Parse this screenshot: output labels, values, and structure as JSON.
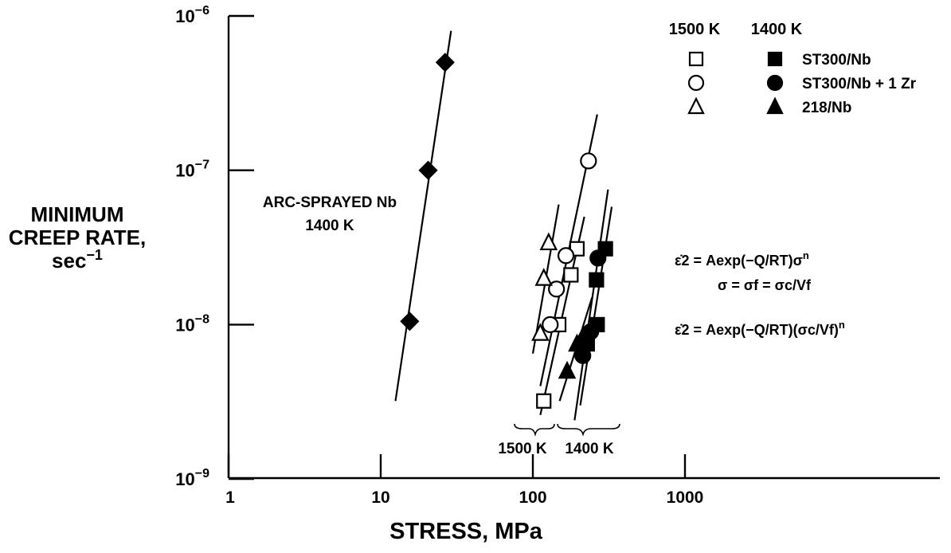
{
  "chart_data": {
    "type": "scatter",
    "x_scale": "log",
    "y_scale": "log",
    "xlim": [
      1,
      10000
    ],
    "ylim": [
      1e-09,
      1e-06
    ],
    "xlabel": "STRESS, MPa",
    "ylabel_lines": [
      "MINIMUM",
      "CREEP RATE,",
      "sec"
    ],
    "ylabel_exponent": "−1",
    "x_ticks": [
      {
        "value": 1,
        "label": "1"
      },
      {
        "value": 10,
        "label": "10"
      },
      {
        "value": 100,
        "label": "100"
      },
      {
        "value": 1000,
        "label": "1000"
      }
    ],
    "y_ticks": [
      {
        "value": 1e-06,
        "base": "10",
        "exp": "−6"
      },
      {
        "value": 1e-07,
        "base": "10",
        "exp": "−7"
      },
      {
        "value": 1e-08,
        "base": "10",
        "exp": "−8"
      },
      {
        "value": 1e-09,
        "base": "10",
        "exp": "−9"
      }
    ],
    "legend": {
      "placement": "top-right",
      "headers": [
        "1500 K",
        "1400 K"
      ],
      "rows": [
        {
          "label": "ST300/Nb",
          "marker": "square"
        },
        {
          "label": "ST300/Nb + 1 Zr",
          "marker": "circle"
        },
        {
          "label": "218/Nb",
          "marker": "triangle"
        }
      ]
    },
    "series": [
      {
        "name": "ARC-SPRAYED Nb 1400 K",
        "marker": "diamond",
        "filled": true,
        "points": [
          [
            15.5,
            1.05e-08
          ],
          [
            20.5,
            1e-07
          ],
          [
            26.5,
            5e-07
          ]
        ],
        "fit": [
          [
            12.5,
            3.2e-09
          ],
          [
            29.0,
            8e-07
          ]
        ]
      },
      {
        "name": "ST300/Nb",
        "temperature": "1500 K",
        "marker": "square",
        "filled": false,
        "points": [
          [
            118,
            3.2e-09
          ],
          [
            148,
            1e-08
          ],
          [
            178,
            2.1e-08
          ],
          [
            195,
            3.1e-08
          ]
        ],
        "fit": [
          [
            112,
            2.6e-09
          ],
          [
            218,
            5e-08
          ]
        ]
      },
      {
        "name": "ST300/Nb + 1 Zr",
        "temperature": "1500 K",
        "marker": "circle",
        "filled": false,
        "points": [
          [
            130,
            1e-08
          ],
          [
            143,
            1.7e-08
          ],
          [
            165,
            2.8e-08
          ],
          [
            232,
            1.15e-07
          ]
        ],
        "fit": [
          [
            112,
            4e-09
          ],
          [
            265,
            2.3e-07
          ]
        ]
      },
      {
        "name": "218/Nb",
        "temperature": "1500 K",
        "marker": "triangle",
        "filled": false,
        "points": [
          [
            112,
            8.8e-09
          ],
          [
            118,
            2e-08
          ],
          [
            127,
            3.4e-08
          ]
        ],
        "fit": [
          [
            100,
            6.5e-09
          ],
          [
            148,
            6e-08
          ]
        ]
      },
      {
        "name": "ST300/Nb",
        "temperature": "1400 K",
        "marker": "square",
        "filled": true,
        "points": [
          [
            228,
            7.5e-09
          ],
          [
            265,
            1e-08
          ],
          [
            262,
            1.95e-08
          ],
          [
            300,
            3.1e-08
          ]
        ],
        "fit": [
          [
            205,
            3e-09
          ],
          [
            330,
            5.8e-08
          ]
        ]
      },
      {
        "name": "ST300/Nb + 1 Zr",
        "temperature": "1400 K",
        "marker": "circle",
        "filled": true,
        "points": [
          [
            213,
            6.3e-09
          ],
          [
            225,
            8e-09
          ],
          [
            240,
            9e-09
          ],
          [
            268,
            2.7e-08
          ]
        ],
        "fit": [
          [
            188,
            2.4e-09
          ],
          [
            312,
            7.5e-08
          ]
        ]
      },
      {
        "name": "218/Nb",
        "temperature": "1400 K",
        "marker": "triangle",
        "filled": true,
        "points": [
          [
            168,
            5e-09
          ],
          [
            195,
            7.5e-09
          ],
          [
            215,
            8.5e-09
          ]
        ],
        "fit": [
          [
            150,
            3.2e-09
          ],
          [
            245,
            1.5e-08
          ]
        ]
      }
    ],
    "annotations": {
      "arc_label": [
        "ARC-SPRAYED Nb",
        "1400 K"
      ],
      "bracket_1500": "1500 K",
      "bracket_1400": "1400 K",
      "eq1_lhs": "ε̇2 = Aexp(−Q/RT)σ",
      "eq1_sup": "n",
      "eq2": "σ = σf = σc/Vf",
      "eq3_lhs": "ε̇2 = Aexp(−Q/RT)(σc/Vf)",
      "eq3_sup": "n"
    }
  }
}
